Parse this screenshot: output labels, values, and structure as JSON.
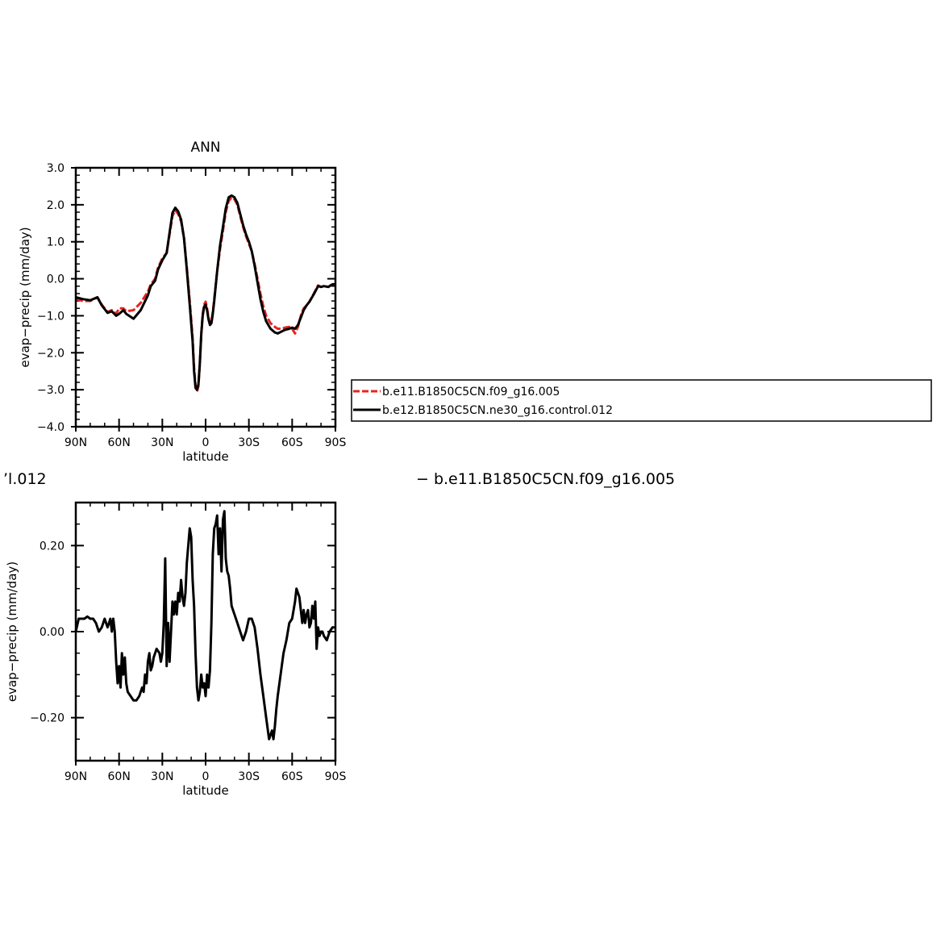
{
  "chart_data": [
    {
      "type": "line",
      "title": "ANN",
      "xlabel": "latitude",
      "ylabel": "evap−precip (mm/day)",
      "xlim": [
        90,
        -90
      ],
      "ylim": [
        -4.0,
        3.0
      ],
      "xticks": [
        90,
        60,
        30,
        0,
        -30,
        -60,
        -90
      ],
      "xtick_labels": [
        "90N",
        "60N",
        "30N",
        "0",
        "30S",
        "60S",
        "90S"
      ],
      "yticks": [
        3.0,
        2.0,
        1.0,
        0.0,
        -1.0,
        -2.0,
        -3.0,
        -4.0
      ],
      "ytick_labels": [
        "3.0",
        "2.0",
        "1.0",
        "0.0",
        "−1.0",
        "−2.0",
        "−3.0",
        "−4.0"
      ],
      "legend": "right, outside plot",
      "series": [
        {
          "name": "b.e11.B1850C5CN.f09_g16.005",
          "color": "#e8231f",
          "dash": "dashed",
          "x": [
            90,
            85,
            80,
            75,
            72,
            68,
            65,
            62,
            60,
            57,
            55,
            50,
            45,
            40,
            38,
            35,
            33,
            30,
            27,
            25,
            23,
            21,
            19,
            17,
            15,
            13,
            11,
            9,
            8,
            7,
            6,
            5,
            4,
            3,
            2,
            1,
            0,
            -1,
            -2,
            -3,
            -4,
            -5,
            -6,
            -8,
            -10,
            -12,
            -14,
            -16,
            -18,
            -20,
            -22,
            -24,
            -26,
            -28,
            -30,
            -32,
            -34,
            -36,
            -38,
            -40,
            -42,
            -45,
            -48,
            -50,
            -53,
            -55,
            -58,
            -60,
            -62,
            -64,
            -66,
            -68,
            -70,
            -72,
            -75,
            -78,
            -80,
            -82,
            -85,
            -88,
            -90
          ],
          "y": [
            -0.55,
            -0.6,
            -0.6,
            -0.5,
            -0.7,
            -0.9,
            -0.85,
            -0.95,
            -0.8,
            -0.8,
            -0.88,
            -0.85,
            -0.65,
            -0.35,
            -0.15,
            0.0,
            0.3,
            0.55,
            0.7,
            1.2,
            1.7,
            1.85,
            1.75,
            1.55,
            1.1,
            0.3,
            -0.6,
            -1.6,
            -2.4,
            -2.9,
            -3.05,
            -2.9,
            -2.3,
            -1.5,
            -0.95,
            -0.7,
            -0.62,
            -0.8,
            -1.05,
            -1.18,
            -1.15,
            -0.9,
            -0.55,
            0.2,
            0.8,
            1.3,
            1.8,
            2.1,
            2.2,
            2.15,
            2.0,
            1.7,
            1.4,
            1.15,
            0.95,
            0.75,
            0.4,
            0.0,
            -0.4,
            -0.75,
            -1.0,
            -1.2,
            -1.3,
            -1.35,
            -1.35,
            -1.32,
            -1.3,
            -1.35,
            -1.48,
            -1.3,
            -1.0,
            -0.8,
            -0.72,
            -0.62,
            -0.4,
            -0.18,
            -0.22,
            -0.2,
            -0.22,
            -0.15,
            -0.15
          ]
        },
        {
          "name": "b.e12.B1850C5CN.ne30_g16.control.012",
          "color": "#000000",
          "dash": "solid",
          "x": [
            90,
            85,
            80,
            75,
            72,
            68,
            65,
            62,
            60,
            57,
            55,
            50,
            45,
            40,
            38,
            35,
            33,
            30,
            27,
            25,
            23,
            21,
            19,
            17,
            15,
            13,
            11,
            9,
            8,
            7,
            6,
            5,
            4,
            3,
            2,
            1,
            0,
            -1,
            -2,
            -3,
            -4,
            -5,
            -6,
            -8,
            -10,
            -12,
            -14,
            -16,
            -18,
            -20,
            -22,
            -24,
            -26,
            -28,
            -30,
            -32,
            -34,
            -36,
            -38,
            -40,
            -42,
            -45,
            -48,
            -50,
            -53,
            -55,
            -58,
            -60,
            -62,
            -64,
            -66,
            -68,
            -70,
            -72,
            -75,
            -78,
            -80,
            -82,
            -85,
            -88,
            -90
          ],
          "y": [
            -0.5,
            -0.55,
            -0.58,
            -0.5,
            -0.72,
            -0.92,
            -0.88,
            -1.0,
            -0.95,
            -0.85,
            -0.95,
            -1.08,
            -0.85,
            -0.45,
            -0.2,
            -0.05,
            0.25,
            0.5,
            0.7,
            1.25,
            1.78,
            1.92,
            1.82,
            1.6,
            1.1,
            0.25,
            -0.7,
            -1.7,
            -2.5,
            -2.95,
            -3.0,
            -2.85,
            -2.3,
            -1.5,
            -1.0,
            -0.75,
            -0.7,
            -0.85,
            -1.1,
            -1.25,
            -1.2,
            -0.95,
            -0.6,
            0.2,
            0.9,
            1.4,
            1.9,
            2.2,
            2.25,
            2.2,
            2.05,
            1.75,
            1.45,
            1.2,
            1.0,
            0.75,
            0.35,
            -0.1,
            -0.55,
            -0.9,
            -1.15,
            -1.35,
            -1.45,
            -1.48,
            -1.42,
            -1.38,
            -1.35,
            -1.32,
            -1.35,
            -1.25,
            -1.05,
            -0.85,
            -0.72,
            -0.62,
            -0.42,
            -0.2,
            -0.22,
            -0.2,
            -0.22,
            -0.15,
            -0.15
          ]
        }
      ]
    },
    {
      "type": "line",
      "title_fragments": [
        "’l.012",
        "− b.e11.B1850C5CN.f09_g16.005"
      ],
      "xlabel": "latitude",
      "ylabel": "evap−precip (mm/day)",
      "xlim": [
        90,
        -90
      ],
      "ylim": [
        -0.3,
        0.3
      ],
      "xticks": [
        90,
        60,
        30,
        0,
        -30,
        -60,
        -90
      ],
      "xtick_labels": [
        "90N",
        "60N",
        "30N",
        "0",
        "30S",
        "60S",
        "90S"
      ],
      "yticks": [
        0.2,
        0.0,
        -0.2
      ],
      "ytick_labels": [
        "0.20",
        "0.00",
        "−0.20"
      ],
      "series": [
        {
          "color": "#000000",
          "x": [
            90,
            88,
            86,
            84,
            82,
            80,
            78,
            76,
            74,
            72,
            70,
            68,
            66,
            65,
            64,
            63,
            62,
            61,
            60,
            59,
            58,
            57,
            56,
            55,
            54,
            52,
            50,
            48,
            46,
            44,
            43,
            42,
            41,
            40,
            39,
            38,
            37,
            36,
            34,
            32,
            31,
            30,
            29,
            28,
            27,
            26,
            25,
            24,
            23,
            22,
            21,
            20,
            19,
            18,
            17,
            16,
            15,
            14,
            13,
            12,
            11,
            10,
            9,
            8,
            7,
            6,
            5,
            4,
            3,
            2,
            1,
            0,
            -1,
            -2,
            -3,
            -4,
            -5,
            -6,
            -7,
            -8,
            -9,
            -10,
            -11,
            -12,
            -13,
            -14,
            -15,
            -16,
            -17,
            -18,
            -20,
            -22,
            -24,
            -26,
            -28,
            -30,
            -32,
            -34,
            -36,
            -38,
            -40,
            -42,
            -44,
            -46,
            -47,
            -48,
            -49,
            -50,
            -52,
            -54,
            -56,
            -58,
            -60,
            -62,
            -63,
            -64,
            -65,
            -66,
            -67,
            -68,
            -69,
            -70,
            -71,
            -72,
            -73,
            -74,
            -75,
            -76,
            -77,
            -78,
            -79,
            -80,
            -81,
            -82,
            -84,
            -86,
            -88,
            -90
          ],
          "y": [
            0.0,
            0.03,
            0.03,
            0.03,
            0.035,
            0.03,
            0.03,
            0.02,
            0.0,
            0.01,
            0.03,
            0.01,
            0.03,
            0.0,
            0.03,
            0.0,
            -0.07,
            -0.12,
            -0.08,
            -0.13,
            -0.05,
            -0.1,
            -0.06,
            -0.12,
            -0.14,
            -0.15,
            -0.16,
            -0.16,
            -0.15,
            -0.13,
            -0.14,
            -0.1,
            -0.12,
            -0.07,
            -0.05,
            -0.09,
            -0.08,
            -0.06,
            -0.04,
            -0.05,
            -0.07,
            -0.05,
            0.02,
            0.17,
            -0.08,
            0.02,
            -0.07,
            0.0,
            0.07,
            0.04,
            0.07,
            0.04,
            0.09,
            0.07,
            0.12,
            0.08,
            0.06,
            0.09,
            0.16,
            0.2,
            0.24,
            0.22,
            0.12,
            0.06,
            -0.05,
            -0.13,
            -0.16,
            -0.14,
            -0.1,
            -0.13,
            -0.12,
            -0.15,
            -0.1,
            -0.13,
            -0.09,
            0.02,
            0.18,
            0.24,
            0.25,
            0.27,
            0.18,
            0.24,
            0.14,
            0.26,
            0.28,
            0.17,
            0.14,
            0.13,
            0.1,
            0.06,
            0.04,
            0.02,
            0.0,
            -0.02,
            0.0,
            0.03,
            0.03,
            0.01,
            -0.04,
            -0.1,
            -0.15,
            -0.2,
            -0.25,
            -0.23,
            -0.25,
            -0.22,
            -0.18,
            -0.15,
            -0.1,
            -0.05,
            -0.02,
            0.02,
            0.03,
            0.07,
            0.1,
            0.09,
            0.08,
            0.05,
            0.02,
            0.05,
            0.02,
            0.04,
            0.05,
            0.01,
            0.02,
            0.06,
            0.03,
            0.07,
            -0.04,
            0.01,
            -0.01,
            0.0,
            0.0,
            -0.01,
            -0.02,
            0.0,
            0.01,
            0.01
          ]
        }
      ]
    }
  ]
}
